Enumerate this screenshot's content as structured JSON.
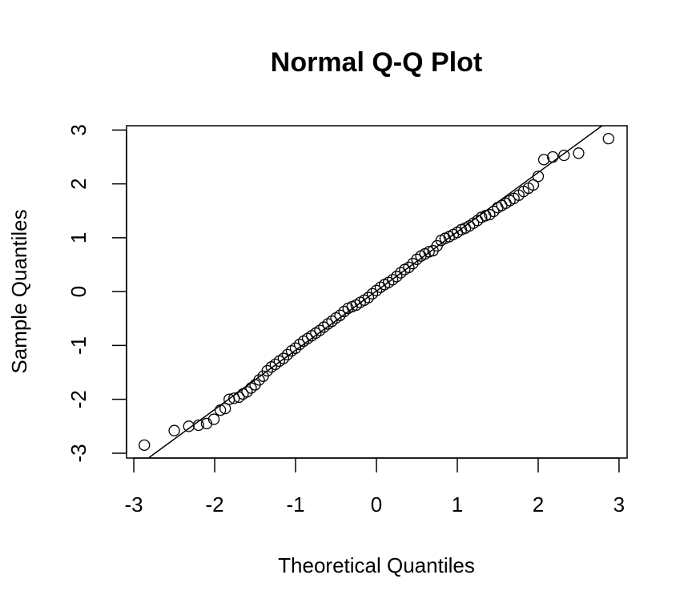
{
  "chart_data": {
    "type": "scatter",
    "title": "Normal Q-Q Plot",
    "x_label": "Theoretical Quantiles",
    "y_label": "Sample Quantiles",
    "x": [
      -2.87,
      -2.5,
      -2.32,
      -2.2,
      -2.1,
      -2.01,
      -1.93,
      -1.87,
      -1.82,
      -1.76,
      -1.7,
      -1.65,
      -1.6,
      -1.55,
      -1.5,
      -1.45,
      -1.4,
      -1.35,
      -1.3,
      -1.25,
      -1.2,
      -1.15,
      -1.1,
      -1.05,
      -1.0,
      -0.95,
      -0.9,
      -0.85,
      -0.8,
      -0.75,
      -0.7,
      -0.65,
      -0.6,
      -0.55,
      -0.5,
      -0.45,
      -0.4,
      -0.35,
      -0.3,
      -0.25,
      -0.2,
      -0.15,
      -0.1,
      -0.05,
      0,
      0.05,
      0.1,
      0.15,
      0.2,
      0.25,
      0.3,
      0.35,
      0.4,
      0.45,
      0.5,
      0.55,
      0.6,
      0.65,
      0.7,
      0.75,
      0.8,
      0.85,
      0.9,
      0.95,
      1.0,
      1.05,
      1.1,
      1.15,
      1.2,
      1.25,
      1.3,
      1.35,
      1.4,
      1.45,
      1.5,
      1.55,
      1.6,
      1.65,
      1.7,
      1.76,
      1.82,
      1.88,
      1.94,
      2.0,
      2.07,
      2.18,
      2.32,
      2.5,
      2.87
    ],
    "values": [
      -2.85,
      -2.58,
      -2.5,
      -2.48,
      -2.45,
      -2.37,
      -2.2,
      -2.17,
      -2.0,
      -1.98,
      -1.96,
      -1.9,
      -1.86,
      -1.79,
      -1.73,
      -1.64,
      -1.57,
      -1.47,
      -1.4,
      -1.35,
      -1.29,
      -1.24,
      -1.17,
      -1.1,
      -1.05,
      -0.98,
      -0.92,
      -0.87,
      -0.82,
      -0.77,
      -0.72,
      -0.66,
      -0.6,
      -0.55,
      -0.49,
      -0.44,
      -0.37,
      -0.31,
      -0.28,
      -0.25,
      -0.2,
      -0.16,
      -0.11,
      -0.04,
      0.02,
      0.08,
      0.13,
      0.17,
      0.22,
      0.28,
      0.35,
      0.41,
      0.45,
      0.52,
      0.6,
      0.66,
      0.7,
      0.74,
      0.76,
      0.85,
      0.95,
      0.99,
      1.02,
      1.06,
      1.1,
      1.15,
      1.18,
      1.22,
      1.27,
      1.32,
      1.38,
      1.41,
      1.43,
      1.49,
      1.56,
      1.6,
      1.64,
      1.69,
      1.73,
      1.79,
      1.86,
      1.92,
      1.98,
      2.14,
      2.45,
      2.5,
      2.53,
      2.57,
      2.84
    ],
    "reference_line": {
      "x": [
        -2.82,
        2.79
      ],
      "y": [
        -3.09,
        3.08
      ]
    },
    "xlim": [
      -3.09,
      3.1
    ],
    "ylim": [
      -3.09,
      3.08
    ],
    "xticks": [
      -3,
      -2,
      -1,
      0,
      1,
      2,
      3
    ],
    "yticks": [
      -3,
      -2,
      -1,
      0,
      1,
      2,
      3
    ]
  }
}
